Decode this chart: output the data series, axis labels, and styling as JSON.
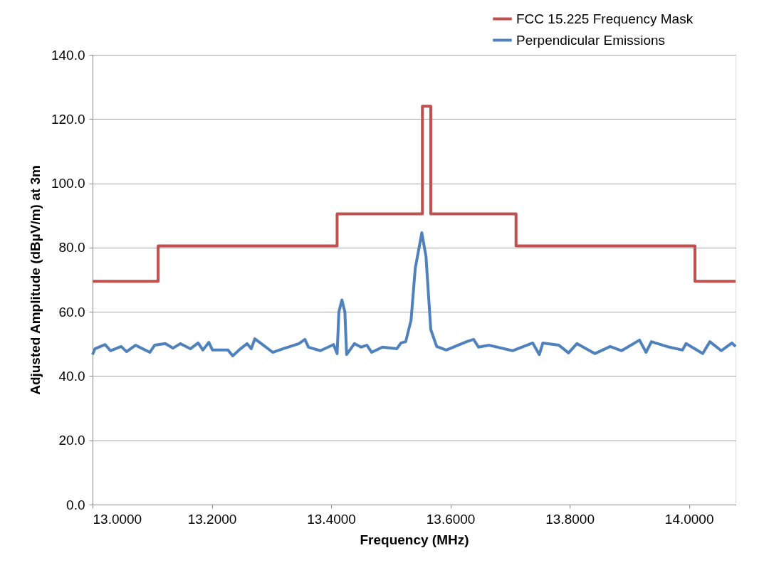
{
  "chart_data": {
    "type": "line",
    "xlabel": "Frequency (MHz)",
    "ylabel": "Adjusted Amplitude (dBµV/m) at 3m",
    "xlim": [
      13.0,
      14.078
    ],
    "ylim": [
      0,
      140
    ],
    "xticks": [
      {
        "value": 13.0,
        "label": "13.0000"
      },
      {
        "value": 13.2,
        "label": "13.2000"
      },
      {
        "value": 13.4,
        "label": "13.4000"
      },
      {
        "value": 13.6,
        "label": "13.6000"
      },
      {
        "value": 13.8,
        "label": "13.8000"
      },
      {
        "value": 14.0,
        "label": "14.0000"
      }
    ],
    "yticks": [
      {
        "value": 0,
        "label": "0.0"
      },
      {
        "value": 20,
        "label": "20.0"
      },
      {
        "value": 40,
        "label": "40.0"
      },
      {
        "value": 60,
        "label": "60.0"
      },
      {
        "value": 80,
        "label": "80.0"
      },
      {
        "value": 100,
        "label": "100.0"
      },
      {
        "value": 120,
        "label": "120.0"
      },
      {
        "value": 140,
        "label": "140.0"
      }
    ],
    "grid": "y",
    "legend": "top right",
    "marker": "none",
    "line_style": "solid",
    "series": [
      {
        "name": "FCC 15.225 Frequency Mask",
        "type": "step",
        "color": "#c0504d",
        "x": [
          13.0,
          13.11,
          13.41,
          13.553,
          13.567,
          13.71,
          14.01,
          14.078
        ],
        "values": [
          69.5,
          80.5,
          90.5,
          124.0,
          90.5,
          80.5,
          69.5,
          69.5
        ]
      },
      {
        "name": "Perpendicular Emissions",
        "type": "line",
        "color": "#4f81bd",
        "x": [
          13.0,
          13.004,
          13.021,
          13.03,
          13.048,
          13.057,
          13.072,
          13.096,
          13.104,
          13.122,
          13.135,
          13.147,
          13.164,
          13.177,
          13.185,
          13.195,
          13.201,
          13.227,
          13.235,
          13.248,
          13.259,
          13.266,
          13.272,
          13.283,
          13.302,
          13.319,
          13.346,
          13.356,
          13.362,
          13.382,
          13.404,
          13.41,
          13.413,
          13.418,
          13.423,
          13.426,
          13.439,
          13.45,
          13.46,
          13.468,
          13.486,
          13.51,
          13.517,
          13.525,
          13.534,
          13.541,
          13.552,
          13.559,
          13.567,
          13.577,
          13.593,
          13.627,
          13.639,
          13.647,
          13.665,
          13.704,
          13.738,
          13.749,
          13.755,
          13.782,
          13.798,
          13.812,
          13.842,
          13.868,
          13.887,
          13.917,
          13.928,
          13.937,
          13.967,
          13.989,
          13.995,
          14.023,
          14.035,
          14.054,
          14.072,
          14.078
        ],
        "values": [
          46.7,
          48.5,
          49.8,
          47.9,
          49.2,
          47.6,
          49.6,
          47.4,
          49.6,
          50.1,
          48.7,
          50.1,
          48.5,
          50.3,
          48.1,
          50.5,
          48.1,
          48.1,
          46.3,
          48.5,
          50.1,
          48.5,
          51.6,
          50.1,
          47.4,
          48.5,
          50.1,
          51.4,
          49.0,
          47.9,
          49.8,
          47.0,
          60.0,
          63.7,
          60.0,
          46.7,
          50.1,
          49.0,
          49.6,
          47.4,
          49.0,
          48.5,
          50.3,
          50.7,
          57.4,
          73.5,
          84.6,
          77.3,
          54.5,
          49.2,
          48.1,
          50.7,
          51.4,
          49.0,
          49.6,
          47.9,
          50.3,
          46.7,
          50.3,
          49.6,
          47.2,
          50.1,
          47.0,
          49.2,
          47.9,
          51.2,
          47.4,
          50.7,
          49.0,
          48.1,
          50.1,
          47.0,
          50.7,
          47.9,
          50.3,
          49.2
        ]
      }
    ]
  }
}
